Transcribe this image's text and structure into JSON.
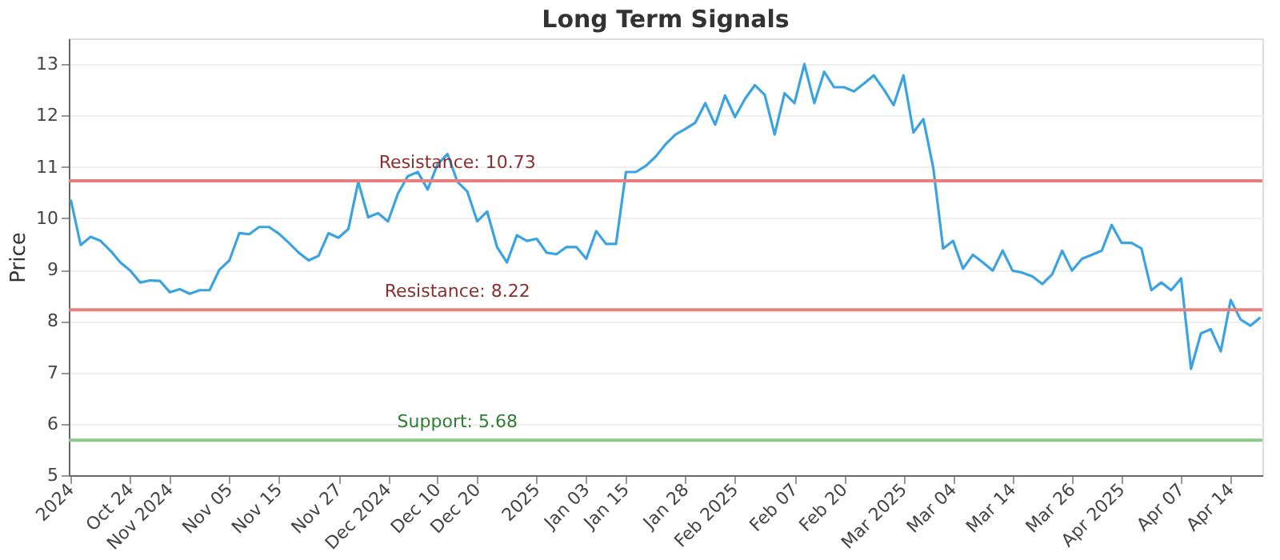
{
  "chart_data": {
    "type": "line",
    "title": "Long Term Signals",
    "ylabel": "Price",
    "categories": [
      "2024",
      null,
      null,
      null,
      null,
      null,
      "Oct 24",
      null,
      null,
      null,
      "Nov 2024",
      null,
      null,
      null,
      null,
      null,
      "Nov 05",
      null,
      null,
      null,
      null,
      "Nov 15",
      null,
      null,
      null,
      null,
      null,
      "Nov 27",
      null,
      null,
      null,
      null,
      "Dec 2024",
      null,
      null,
      null,
      null,
      "Dec 10",
      null,
      null,
      null,
      "Dec 20",
      null,
      null,
      null,
      null,
      null,
      "2025",
      null,
      null,
      null,
      null,
      "Jan 03",
      null,
      null,
      null,
      "Jan 15",
      null,
      null,
      null,
      null,
      null,
      "Jan 28",
      null,
      null,
      null,
      null,
      "Feb 2025",
      null,
      null,
      null,
      null,
      null,
      "Feb 07",
      null,
      null,
      null,
      null,
      "Feb 20",
      null,
      null,
      null,
      null,
      null,
      "Mar 2025",
      null,
      null,
      null,
      null,
      "Mar 04",
      null,
      null,
      null,
      null,
      null,
      "Mar 14",
      null,
      null,
      null,
      null,
      null,
      "Mar 26",
      null,
      null,
      null,
      null,
      "Apr 2025",
      null,
      null,
      null,
      null,
      null,
      "Apr 07",
      null,
      null,
      null,
      null,
      "Apr 14",
      null,
      null,
      null
    ],
    "series": [
      {
        "color": "#3ba3e0",
        "values": [
          10.36,
          9.48,
          9.64,
          9.56,
          9.37,
          9.14,
          8.98,
          8.75,
          8.79,
          8.78,
          8.56,
          8.62,
          8.53,
          8.6,
          8.6,
          9.0,
          9.18,
          9.71,
          9.69,
          9.83,
          9.83,
          9.7,
          9.52,
          9.33,
          9.18,
          9.27,
          9.71,
          9.62,
          9.79,
          10.71,
          10.02,
          10.1,
          9.94,
          10.48,
          10.82,
          10.9,
          10.56,
          11.05,
          11.25,
          10.71,
          10.52,
          9.94,
          10.13,
          9.44,
          9.14,
          9.67,
          9.56,
          9.6,
          9.33,
          9.3,
          9.44,
          9.44,
          9.21,
          9.75,
          9.5,
          9.5,
          10.9,
          10.9,
          11.02,
          11.2,
          11.44,
          11.63,
          11.74,
          11.86,
          12.24,
          11.82,
          12.39,
          11.97,
          12.32,
          12.59,
          12.4,
          11.63,
          12.43,
          12.24,
          13.0,
          12.24,
          12.85,
          12.55,
          12.55,
          12.47,
          12.62,
          12.78,
          12.51,
          12.2,
          12.78,
          11.67,
          11.93,
          10.98,
          9.41,
          9.56,
          9.02,
          9.29,
          9.14,
          8.98,
          9.37,
          8.98,
          8.94,
          8.87,
          8.72,
          8.91,
          9.37,
          8.98,
          9.21,
          9.29,
          9.37,
          9.87,
          9.52,
          9.52,
          9.41,
          8.6,
          8.75,
          8.6,
          8.83,
          7.07,
          7.76,
          7.84,
          7.41,
          8.41,
          8.03,
          7.91,
          8.07
        ]
      }
    ],
    "ylim": [
      5,
      13.5
    ],
    "yticks": [
      5,
      6,
      7,
      8,
      9,
      10,
      11,
      12,
      13
    ],
    "ref_lines": [
      {
        "axis": "y",
        "value": 10.73,
        "label": "Resistance: 10.73",
        "color": "#e88080"
      },
      {
        "axis": "y",
        "value": 8.22,
        "label": "Resistance: 8.22",
        "color": "#e88080"
      },
      {
        "axis": "y",
        "value": 5.68,
        "label": "Support: 5.68",
        "color": "#8cc88c"
      }
    ],
    "grid": "y",
    "marker": "none",
    "line_style": "solid"
  }
}
